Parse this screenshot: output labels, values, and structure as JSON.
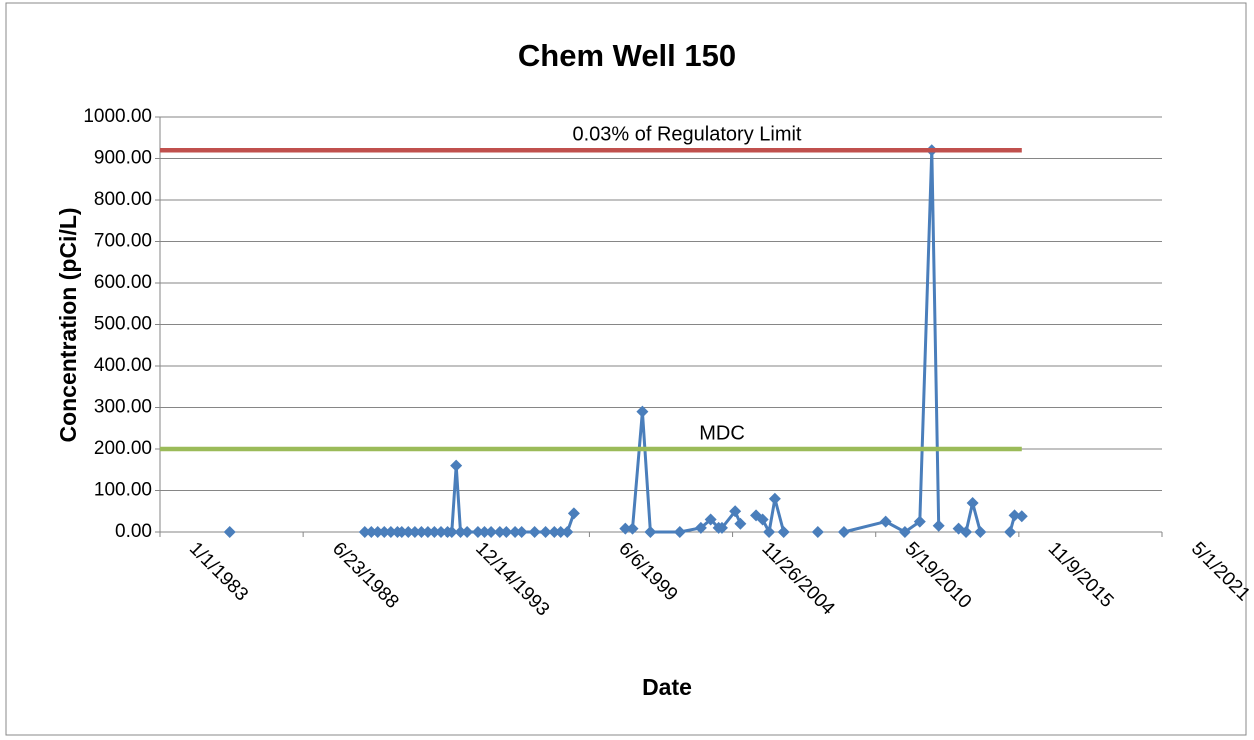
{
  "chart_data": {
    "type": "line",
    "title": "Chem Well 150",
    "x_label": "Date",
    "y_label": "Concentration (pCi/L)",
    "xlim": [
      "1983-01-01",
      "2021-05-01"
    ],
    "xticks": [
      {
        "value": "1983-01-01",
        "label": "1/1/1983"
      },
      {
        "value": "1988-06-23",
        "label": "6/23/1988"
      },
      {
        "value": "1993-12-14",
        "label": "12/14/1993"
      },
      {
        "value": "1999-06-06",
        "label": "6/6/1999"
      },
      {
        "value": "2004-11-26",
        "label": "11/26/2004"
      },
      {
        "value": "2010-05-19",
        "label": "5/19/2010"
      },
      {
        "value": "2015-11-09",
        "label": "11/9/2015"
      },
      {
        "value": "2021-05-01",
        "label": "5/1/2021"
      }
    ],
    "ylim": [
      0,
      1000
    ],
    "yticks": [
      {
        "value": 0,
        "label": "0.00"
      },
      {
        "value": 100,
        "label": "100.00"
      },
      {
        "value": 200,
        "label": "200.00"
      },
      {
        "value": 300,
        "label": "300.00"
      },
      {
        "value": 400,
        "label": "400.00"
      },
      {
        "value": 500,
        "label": "500.00"
      },
      {
        "value": 600,
        "label": "600.00"
      },
      {
        "value": 700,
        "label": "700.00"
      },
      {
        "value": 800,
        "label": "800.00"
      },
      {
        "value": 900,
        "label": "900.00"
      },
      {
        "value": 1000,
        "label": "1000.00"
      }
    ],
    "grid": true,
    "series": [
      {
        "name": "Concentration",
        "color": "#4a7ebb",
        "markers": true,
        "x": [
          "1985-09-01",
          null,
          "1990-11-01",
          "1991-02-01",
          "1991-05-01",
          "1991-08-01",
          "1991-11-01",
          "1992-02-01",
          "1992-04-01",
          "1992-07-01",
          "1992-10-01",
          "1993-01-01",
          "1993-04-01",
          "1993-07-01",
          "1993-10-01",
          "1994-01-01",
          "1994-03-01",
          "1994-05-01",
          "1994-07-01",
          "1994-10-01",
          "1995-03-01",
          "1995-06-01",
          "1995-09-01",
          "1996-01-01",
          "1996-04-01",
          "1996-08-01",
          "1996-11-01",
          "1997-05-01",
          "1997-10-01",
          "1998-02-01",
          "1998-05-01",
          "1998-08-01",
          "1998-11-01",
          null,
          "2000-10-20",
          "2001-01-28",
          "2001-06-15",
          "2001-10-05",
          "2002-11-20",
          "2003-09-10",
          "2004-01-25",
          "2004-05-15",
          "2004-07-01",
          "2005-01-01",
          "2005-03-15",
          null,
          "2005-10-20",
          "2006-01-20",
          "2006-04-20",
          "2006-07-10",
          "2006-11-10",
          null,
          "2008-03-01",
          null,
          "2009-03-01",
          "2010-10-05",
          "2011-07-01",
          "2012-01-25",
          "2012-07-10",
          "2012-10-15",
          null,
          "2013-07-20",
          "2013-11-01",
          "2014-02-01",
          "2014-05-20",
          null,
          "2015-07-10",
          "2015-09-10",
          "2015-12-20"
        ],
        "values": [
          0,
          null,
          0,
          0,
          0,
          0,
          0,
          0,
          0,
          0,
          0,
          0,
          0,
          0,
          0,
          0,
          0,
          160,
          0,
          0,
          0,
          0,
          0,
          0,
          0,
          0,
          0,
          0,
          0,
          0,
          0,
          0,
          45,
          null,
          8,
          8,
          290,
          0,
          0,
          10,
          30,
          10,
          10,
          50,
          20,
          null,
          40,
          30,
          0,
          80,
          0,
          null,
          0,
          null,
          0,
          25,
          0,
          25,
          920,
          15,
          null,
          8,
          0,
          70,
          0,
          null,
          0,
          40,
          38
        ]
      },
      {
        "name": "0.03% of Regulatory Limit",
        "color": "#c0504d",
        "markers": false,
        "x": [
          "1983-01-01",
          "2015-12-20"
        ],
        "values": [
          920,
          920
        ]
      },
      {
        "name": "MDC",
        "color": "#9bbb59",
        "markers": false,
        "x": [
          "1983-01-01",
          "2015-12-20"
        ],
        "values": [
          200,
          200
        ]
      }
    ]
  }
}
